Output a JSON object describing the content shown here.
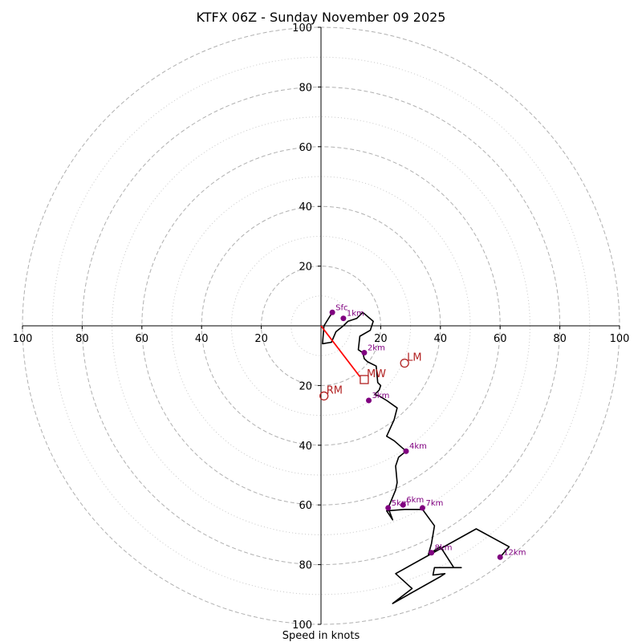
{
  "chart_data": {
    "type": "line",
    "title": "KTFX 06Z - Sunday November 09 2025",
    "xlabel": "Speed in knots",
    "axis_range": [
      -100,
      100
    ],
    "ring_major": [
      20,
      40,
      60,
      80,
      100
    ],
    "ring_minor": [
      10,
      30,
      50,
      70,
      90
    ],
    "tick_labels": {
      "x": [
        "100",
        "80",
        "60",
        "40",
        "20",
        "20",
        "40",
        "60",
        "80",
        "100"
      ],
      "y_top": [
        "20",
        "40",
        "60",
        "80",
        "100"
      ],
      "y_bottom": [
        "20",
        "40",
        "60",
        "80",
        "100"
      ]
    },
    "colors": {
      "hodograph": "#000000",
      "height_marker": "#800080",
      "storm_motion": "#b22222",
      "mean_wind_vector": "#ff0000",
      "grid": "#b0b0b0"
    },
    "hodograph": {
      "u": [
        3.8,
        1,
        0.5,
        3.5,
        5,
        7.5,
        9,
        12,
        14,
        17.5,
        16.5,
        13,
        12.5,
        14,
        14.5,
        15.5,
        18.5,
        19,
        20,
        19.5,
        18,
        19.5,
        22,
        25.5,
        24.5,
        22,
        24.5,
        28.5,
        26,
        25,
        25.5,
        25,
        22.5,
        24,
        22,
        28,
        34,
        38,
        37,
        36,
        40,
        44.5,
        47,
        38,
        37.5,
        41.5,
        40,
        24,
        30.5,
        25,
        52,
        63,
        60
      ],
      "v": [
        4.5,
        0,
        -6,
        -5.5,
        -2,
        0,
        1.5,
        2.5,
        4.5,
        1.5,
        -1.5,
        -3.5,
        -8,
        -9,
        -11,
        -12,
        -13.5,
        -19,
        -20,
        -21.5,
        -23,
        -23.5,
        -25,
        -27.5,
        -31.5,
        -37,
        -38.5,
        -42,
        -44,
        -47,
        -52.5,
        -55,
        -61,
        -65,
        -62,
        -61.5,
        -61.5,
        -67,
        -73,
        -76.5,
        -74,
        -81,
        -81,
        -81,
        -83.5,
        -83,
        -84,
        -93,
        -88,
        -83,
        -68,
        -74,
        -77.5
      ]
    },
    "height_markers": [
      {
        "label": "Sfc",
        "u": 3.8,
        "v": 4.5
      },
      {
        "label": "1km",
        "u": 7.5,
        "v": 2.5
      },
      {
        "label": "2km",
        "u": 14.5,
        "v": -9
      },
      {
        "label": "3km",
        "u": 16,
        "v": -25
      },
      {
        "label": "4km",
        "u": 28.5,
        "v": -42
      },
      {
        "label": "5km",
        "u": 22.5,
        "v": -61
      },
      {
        "label": "6km",
        "u": 27.5,
        "v": -60
      },
      {
        "label": "7km",
        "u": 34,
        "v": -61
      },
      {
        "label": "8km",
        "u": 37,
        "v": -76
      },
      {
        "label": "12km",
        "u": 60,
        "v": -77.5
      }
    ],
    "storm_motion": [
      {
        "label": "LM",
        "u": 28,
        "v": -12.5,
        "marker": "circle"
      },
      {
        "label": "MW",
        "u": 14.5,
        "v": -18,
        "marker": "square"
      },
      {
        "label": "RM",
        "u": 1,
        "v": -23.5,
        "marker": "circle"
      }
    ],
    "mean_wind_vector": {
      "from": [
        0,
        0
      ],
      "to": [
        13,
        -17
      ]
    }
  }
}
